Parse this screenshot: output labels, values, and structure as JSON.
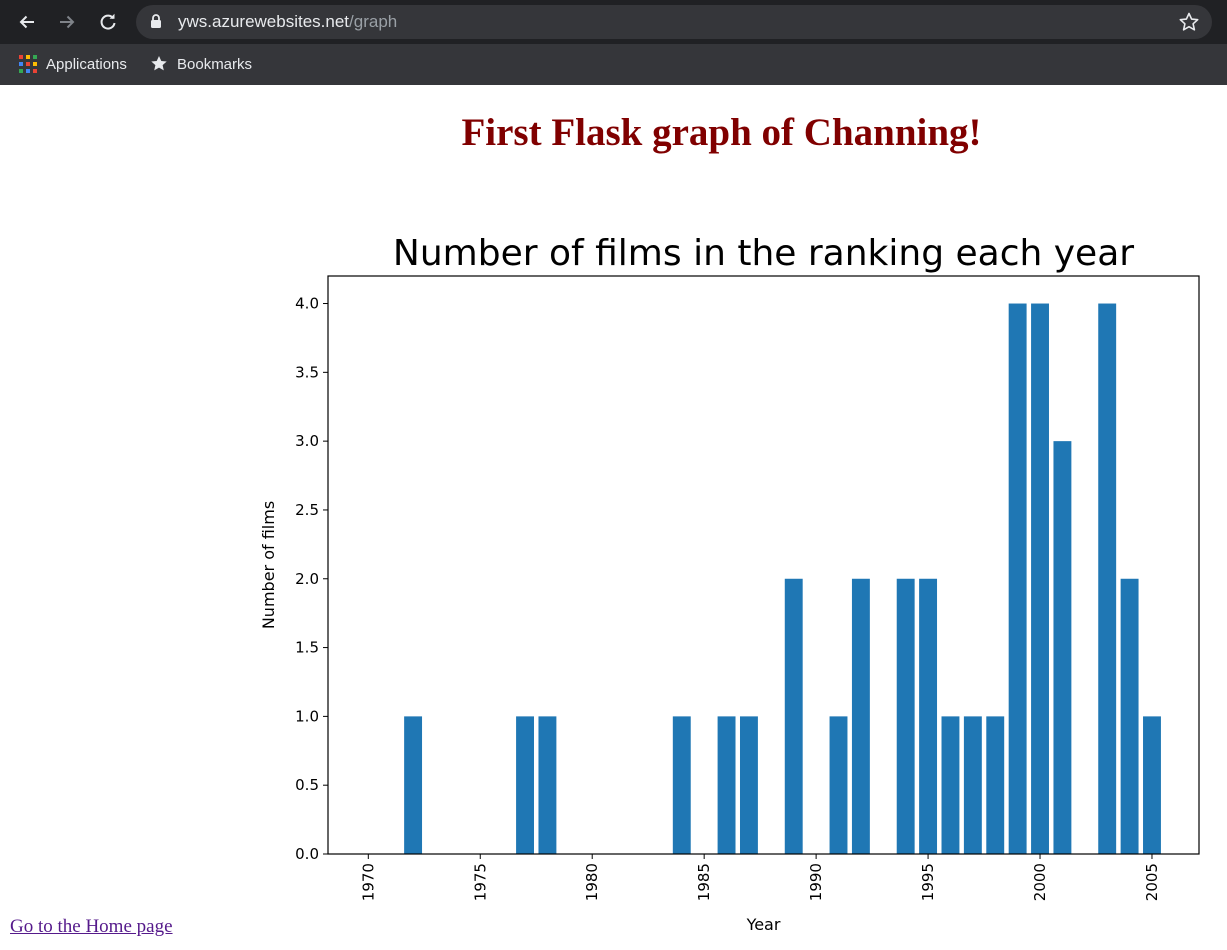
{
  "browser": {
    "url_host": "yws.azurewebsites.net",
    "url_path": "/graph",
    "bookmarks": [
      {
        "label": "Applications",
        "icon": "apps-grid-icon"
      },
      {
        "label": "Bookmarks",
        "icon": "star-icon"
      }
    ]
  },
  "page": {
    "heading": "First Flask graph of Channing!",
    "home_link": "Go to the Home page "
  },
  "chart_data": {
    "type": "bar",
    "title": "Number of films in the ranking each year",
    "xlabel": "Year",
    "ylabel": "Number of films",
    "xlim": [
      1968.2,
      2007.1
    ],
    "ylim": [
      0,
      4.2
    ],
    "xticks": [
      1970,
      1975,
      1980,
      1985,
      1990,
      1995,
      2000,
      2005
    ],
    "yticks": [
      "0.0",
      "0.5",
      "1.0",
      "1.5",
      "2.0",
      "2.5",
      "3.0",
      "3.5",
      "4.0"
    ],
    "bar_color": "#1f77b4",
    "bar_width": 0.8,
    "x": [
      1972,
      1977,
      1978,
      1984,
      1986,
      1987,
      1989,
      1991,
      1992,
      1994,
      1995,
      1996,
      1997,
      1998,
      1999,
      2000,
      2001,
      2003,
      2004,
      2005
    ],
    "values": [
      1,
      1,
      1,
      1,
      1,
      1,
      2,
      1,
      2,
      2,
      2,
      1,
      1,
      1,
      4,
      4,
      3,
      4,
      2,
      1
    ],
    "grid": false,
    "legend": "none"
  }
}
